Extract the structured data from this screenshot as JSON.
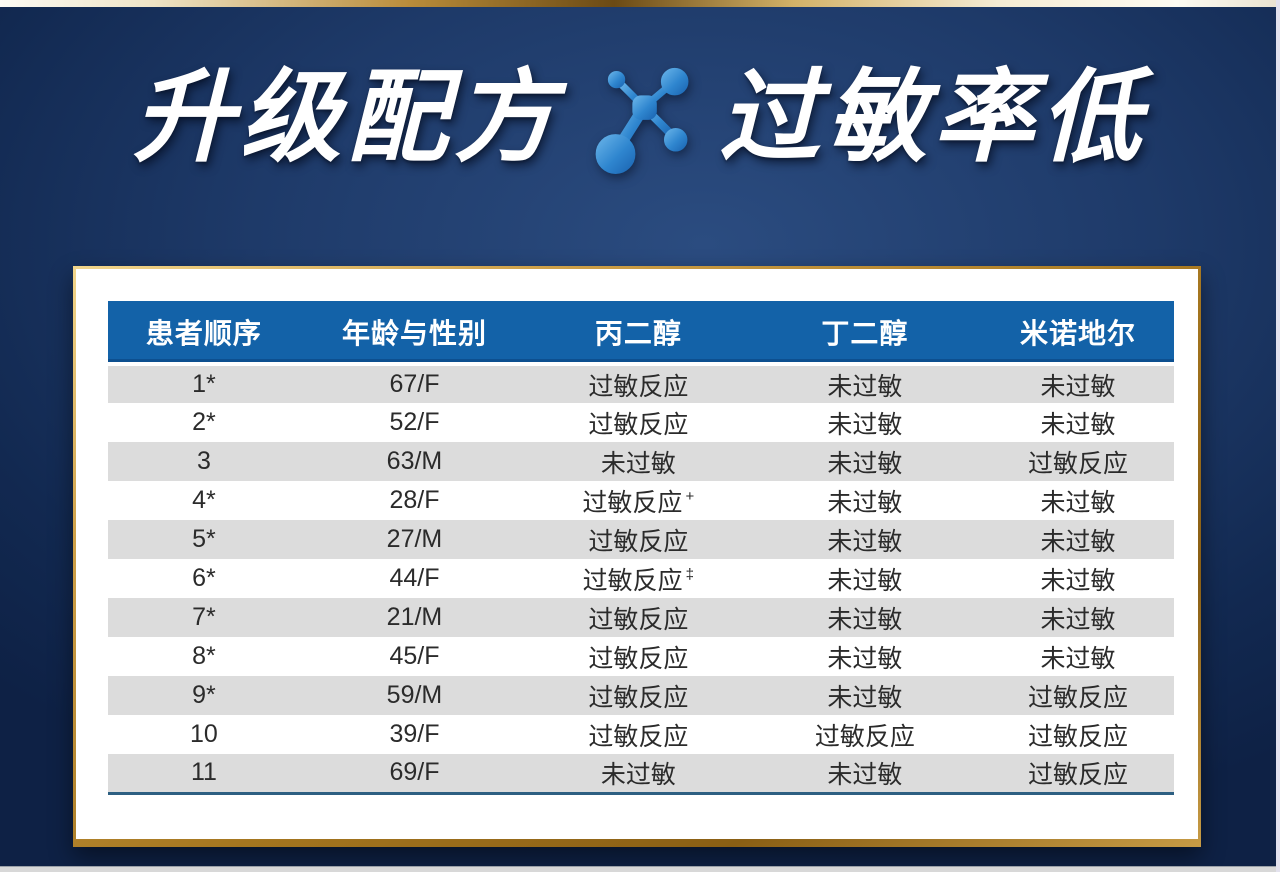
{
  "header": {
    "title_left": "升级配方",
    "title_right": "过敏率低",
    "icon": "molecule"
  },
  "table": {
    "columns": [
      "患者顺序",
      "年龄与性别",
      "丙二醇",
      "丁二醇",
      "米诺地尔"
    ],
    "rows": [
      {
        "cells": [
          "1*",
          "67/F",
          "过敏反应",
          "未过敏",
          "未过敏"
        ],
        "sup": [
          "",
          "",
          "",
          "",
          ""
        ]
      },
      {
        "cells": [
          "2*",
          "52/F",
          "过敏反应",
          "未过敏",
          "未过敏"
        ],
        "sup": [
          "",
          "",
          "",
          "",
          ""
        ]
      },
      {
        "cells": [
          "3",
          "63/M",
          "未过敏",
          "未过敏",
          "过敏反应"
        ],
        "sup": [
          "",
          "",
          "",
          "",
          ""
        ]
      },
      {
        "cells": [
          "4*",
          "28/F",
          "过敏反应",
          "未过敏",
          "未过敏"
        ],
        "sup": [
          "",
          "",
          "+",
          "",
          ""
        ]
      },
      {
        "cells": [
          "5*",
          "27/M",
          "过敏反应",
          "未过敏",
          "未过敏"
        ],
        "sup": [
          "",
          "",
          "",
          "",
          ""
        ]
      },
      {
        "cells": [
          "6*",
          "44/F",
          "过敏反应",
          "未过敏",
          "未过敏"
        ],
        "sup": [
          "",
          "",
          "‡",
          "",
          ""
        ]
      },
      {
        "cells": [
          "7*",
          "21/M",
          "过敏反应",
          "未过敏",
          "未过敏"
        ],
        "sup": [
          "",
          "",
          "",
          "",
          ""
        ]
      },
      {
        "cells": [
          "8*",
          "45/F",
          "过敏反应",
          "未过敏",
          "未过敏"
        ],
        "sup": [
          "",
          "",
          "",
          "",
          ""
        ]
      },
      {
        "cells": [
          "9*",
          "59/M",
          "过敏反应",
          "未过敏",
          "过敏反应"
        ],
        "sup": [
          "",
          "",
          "",
          "",
          ""
        ]
      },
      {
        "cells": [
          "10",
          "39/F",
          "过敏反应",
          "过敏反应",
          "过敏反应"
        ],
        "sup": [
          "",
          "",
          "",
          "",
          ""
        ]
      },
      {
        "cells": [
          "11",
          "69/F",
          "未过敏",
          "未过敏",
          "过敏反应"
        ],
        "sup": [
          "",
          "",
          "",
          "",
          ""
        ]
      }
    ]
  },
  "colors": {
    "header_blue": "#1362a8",
    "row_grey": "#dcdcdc",
    "row_white": "#ffffff",
    "gold_frame": "#bd8e35",
    "background_navy": "#1e3a69",
    "table_bottom_line": "#2d5f82",
    "icon_blue": "#2f86cf"
  }
}
